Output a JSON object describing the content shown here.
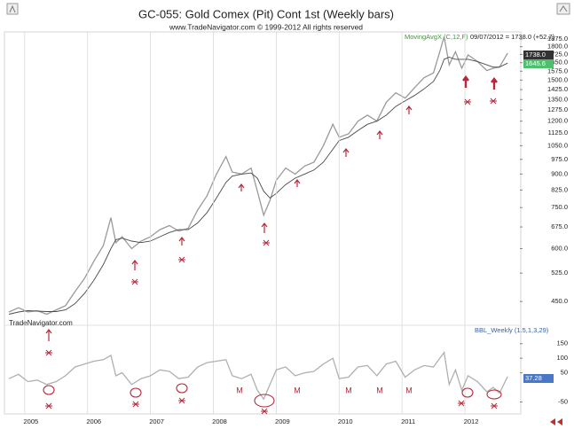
{
  "chart_data": [
    {
      "type": "line",
      "title": "GC-055:  Gold Comex (Pit) Cont 1st  (Weekly bars)",
      "subtitle": "www.TradeNavigator.com © 1999-2012 All rights reserved",
      "log_scale": true,
      "xlim": [
        2004.72,
        2012.86
      ],
      "ylim": [
        405,
        1950
      ],
      "yticks": [
        {
          "value": 1875,
          "label": "1875.0"
        },
        {
          "value": 1800,
          "label": "1800.0"
        },
        {
          "value": 1725,
          "label": "1725.0"
        },
        {
          "value": 1650,
          "label": "1650.0"
        },
        {
          "value": 1575,
          "label": "1575.0"
        },
        {
          "value": 1500,
          "label": "1500.0"
        },
        {
          "value": 1425,
          "label": "1425.0"
        },
        {
          "value": 1350,
          "label": "1350.0"
        },
        {
          "value": 1275,
          "label": "1275.0"
        },
        {
          "value": 1200,
          "label": "1200.0"
        },
        {
          "value": 1125,
          "label": "1125.0"
        },
        {
          "value": 1050,
          "label": "1050.0"
        },
        {
          "value": 975,
          "label": "975.0"
        },
        {
          "value": 900,
          "label": "900.0"
        },
        {
          "value": 825,
          "label": "825.0"
        },
        {
          "value": 750,
          "label": "750.0"
        },
        {
          "value": 675,
          "label": "675.0"
        },
        {
          "value": 600,
          "label": "600.0"
        },
        {
          "value": 525,
          "label": "525.0"
        },
        {
          "value": 450,
          "label": "450.0"
        }
      ],
      "series": [
        {
          "color": "#9a9a9a",
          "x": [
            2004.75,
            2004.9,
            2005.05,
            2005.2,
            2005.35,
            2005.5,
            2005.65,
            2005.8,
            2005.95,
            2006.1,
            2006.25,
            2006.37,
            2006.45,
            2006.55,
            2006.7,
            2006.85,
            2007.0,
            2007.15,
            2007.3,
            2007.45,
            2007.6,
            2007.75,
            2007.9,
            2008.05,
            2008.2,
            2008.3,
            2008.45,
            2008.6,
            2008.7,
            2008.8,
            2008.9,
            2009.0,
            2009.15,
            2009.3,
            2009.45,
            2009.6,
            2009.75,
            2009.9,
            2010.0,
            2010.15,
            2010.3,
            2010.45,
            2010.6,
            2010.75,
            2010.9,
            2011.05,
            2011.2,
            2011.35,
            2011.5,
            2011.6,
            2011.67,
            2011.75,
            2011.85,
            2011.95,
            2012.05,
            2012.2,
            2012.35,
            2012.45,
            2012.55,
            2012.68
          ],
          "values": [
            425,
            435,
            425,
            428,
            420,
            430,
            440,
            475,
            510,
            560,
            610,
            710,
            620,
            640,
            600,
            625,
            640,
            665,
            680,
            660,
            670,
            740,
            800,
            900,
            990,
            910,
            900,
            930,
            820,
            720,
            780,
            870,
            930,
            900,
            940,
            960,
            1050,
            1180,
            1100,
            1120,
            1200,
            1240,
            1200,
            1330,
            1400,
            1360,
            1440,
            1520,
            1560,
            1750,
            1900,
            1630,
            1750,
            1600,
            1720,
            1660,
            1580,
            1600,
            1610,
            1738
          ]
        },
        {
          "name": "MovingAvgX (C,12,F)",
          "color": "#4a4a4a",
          "x": [
            2004.75,
            2004.9,
            2005.05,
            2005.2,
            2005.35,
            2005.5,
            2005.65,
            2005.8,
            2005.95,
            2006.1,
            2006.25,
            2006.37,
            2006.45,
            2006.55,
            2006.7,
            2006.85,
            2007.0,
            2007.15,
            2007.3,
            2007.45,
            2007.6,
            2007.75,
            2007.9,
            2008.05,
            2008.2,
            2008.3,
            2008.45,
            2008.6,
            2008.7,
            2008.8,
            2008.9,
            2009.0,
            2009.15,
            2009.3,
            2009.45,
            2009.6,
            2009.75,
            2009.9,
            2010.0,
            2010.15,
            2010.3,
            2010.45,
            2010.6,
            2010.75,
            2010.9,
            2011.05,
            2011.2,
            2011.35,
            2011.5,
            2011.6,
            2011.67,
            2011.75,
            2011.85,
            2011.95,
            2012.05,
            2012.2,
            2012.35,
            2012.45,
            2012.55,
            2012.68
          ],
          "values": [
            420,
            425,
            428,
            427,
            426,
            426,
            430,
            445,
            470,
            505,
            550,
            600,
            630,
            635,
            625,
            620,
            625,
            640,
            655,
            665,
            665,
            690,
            730,
            790,
            860,
            890,
            900,
            905,
            880,
            820,
            790,
            810,
            850,
            880,
            900,
            920,
            960,
            1030,
            1080,
            1100,
            1140,
            1180,
            1200,
            1240,
            1300,
            1340,
            1380,
            1430,
            1490,
            1580,
            1680,
            1700,
            1680,
            1680,
            1680,
            1660,
            1630,
            1610,
            1610,
            1645.6
          ]
        }
      ],
      "legend_note": "09/07/2012 = 1738.0 (+52.7)",
      "last_value_labels": [
        "1738.0",
        "1645.6"
      ],
      "footer_label": "TradeNavigator.com"
    },
    {
      "type": "line",
      "title": "BBL_Weekly (1.5,1,3,29)",
      "xlim": [
        2004.72,
        2012.86
      ],
      "xticks": [
        2005,
        2006,
        2007,
        2008,
        2009,
        2010,
        2011,
        2012
      ],
      "ylim": [
        -85,
        210
      ],
      "yticks": [
        150,
        100,
        50,
        -50
      ],
      "series": [
        {
          "color": "#b0b0b0",
          "x": [
            2004.75,
            2004.9,
            2005.05,
            2005.2,
            2005.35,
            2005.5,
            2005.65,
            2005.8,
            2005.95,
            2006.1,
            2006.25,
            2006.37,
            2006.45,
            2006.55,
            2006.7,
            2006.85,
            2007.0,
            2007.15,
            2007.3,
            2007.45,
            2007.6,
            2007.75,
            2007.9,
            2008.05,
            2008.2,
            2008.3,
            2008.45,
            2008.6,
            2008.7,
            2008.8,
            2008.9,
            2009.0,
            2009.15,
            2009.3,
            2009.45,
            2009.6,
            2009.75,
            2009.9,
            2010.0,
            2010.15,
            2010.3,
            2010.45,
            2010.6,
            2010.75,
            2010.9,
            2011.05,
            2011.2,
            2011.35,
            2011.5,
            2011.6,
            2011.67,
            2011.75,
            2011.85,
            2011.95,
            2012.05,
            2012.2,
            2012.35,
            2012.45,
            2012.55,
            2012.68
          ],
          "values": [
            30,
            45,
            20,
            25,
            10,
            20,
            40,
            70,
            80,
            90,
            95,
            110,
            40,
            50,
            10,
            30,
            40,
            60,
            55,
            30,
            35,
            70,
            85,
            90,
            95,
            40,
            30,
            45,
            -10,
            -40,
            10,
            60,
            70,
            40,
            50,
            55,
            80,
            100,
            30,
            35,
            70,
            75,
            40,
            80,
            90,
            35,
            60,
            75,
            70,
            100,
            120,
            10,
            60,
            -10,
            40,
            20,
            -15,
            0,
            -20,
            37.28
          ]
        }
      ],
      "last_value_label": "37.28",
      "handwritten_marks": [
        "M",
        "M",
        "M",
        "M",
        "M"
      ]
    }
  ]
}
